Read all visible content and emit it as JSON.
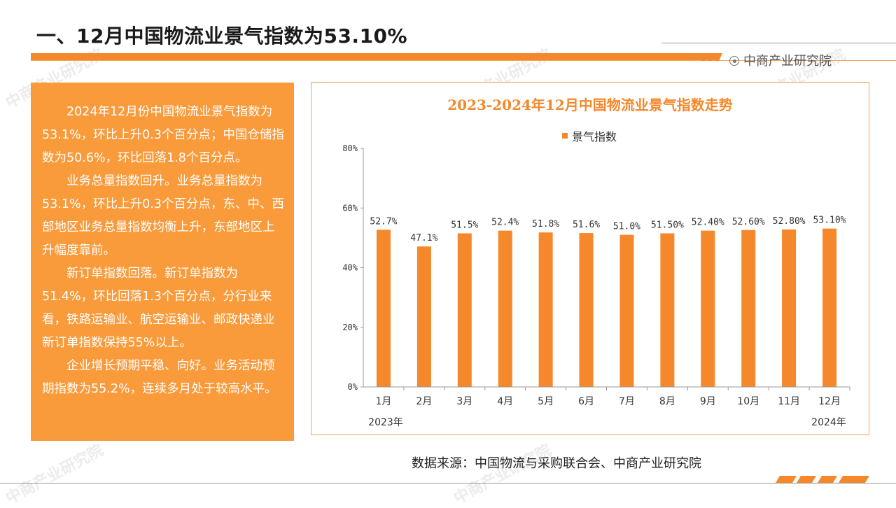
{
  "header": {
    "title": "一、12月中国物流业景气指数为53.10%",
    "brand": "中商产业研究院"
  },
  "summary": {
    "paragraphs": [
      "2024年12月份中国物流业景气指数为53.1%，环比上升0.3个百分点；中国仓储指数为50.6%，环比回落1.8个百分点。",
      "业务总量指数回升。业务总量指数为53.1%，环比上升0.3个百分点，东、中、西部地区业务总量指数均衡上升，东部地区上升幅度靠前。",
      "新订单指数回落。新订单指数为51.4%，环比回落1.3个百分点，分行业来看，铁路运输业、航空运输业、邮政快递业新订单指数保持55%以上。",
      "企业增长预期平稳、向好。业务活动预期指数为55.2%，连续多月处于较高水平。"
    ]
  },
  "chart_data": {
    "type": "bar",
    "title": "2023-2024年12月中国物流业景气指数走势",
    "categories": [
      "1月",
      "2月",
      "3月",
      "4月",
      "5月",
      "6月",
      "7月",
      "8月",
      "9月",
      "10月",
      "11月",
      "12月"
    ],
    "series": [
      {
        "name": "景气指数",
        "values": [
          52.7,
          47.1,
          51.5,
          52.4,
          51.8,
          51.6,
          51.0,
          51.5,
          52.4,
          52.6,
          52.8,
          53.1
        ],
        "labels": [
          "52.7%",
          "47.1%",
          "51.5%",
          "52.4%",
          "51.8%",
          "51.6%",
          "51.0%",
          "51.50%",
          "52.40%",
          "52.60%",
          "52.80%",
          "53.10%"
        ]
      }
    ],
    "ylim": [
      0,
      80
    ],
    "yticks": [
      "0%",
      "20%",
      "40%",
      "60%",
      "80%"
    ],
    "year_labels": {
      "start": "2023年",
      "end": "2024年"
    },
    "legend_position": "top",
    "grid": false,
    "color": "#f5882a"
  },
  "footer": {
    "source": "数据来源：中国物流与采购联合会、中商产业研究院"
  },
  "watermark": "中商产业研究院"
}
